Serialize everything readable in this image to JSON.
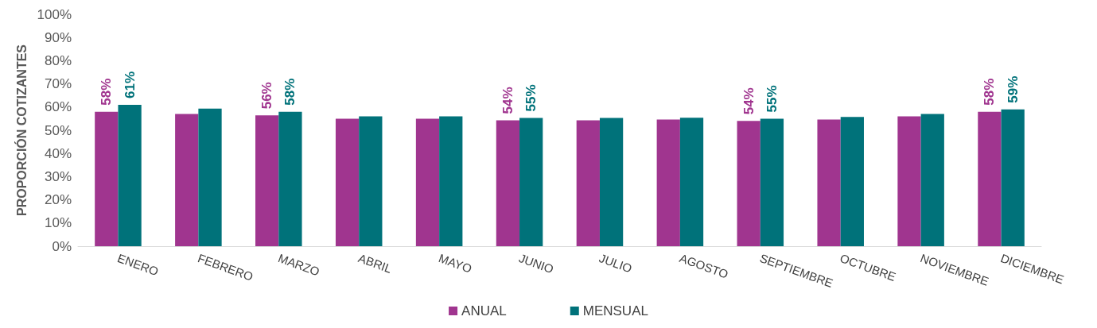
{
  "chart_data": {
    "type": "bar",
    "ylabel": "PROPORCIÓN COTIZANTES",
    "categories": [
      "ENERO",
      "FEBRERO",
      "MARZO",
      "ABRIL",
      "MAYO",
      "JUNIO",
      "JULIO",
      "AGOSTO",
      "SEPTIEMBRE",
      "OCTUBRE",
      "NOVIEMBRE",
      "DICIEMBRE"
    ],
    "series": [
      {
        "name": "ANUAL",
        "color": "#a0358f",
        "values": [
          58,
          57,
          56.4,
          55,
          55,
          54.3,
          54.3,
          54.6,
          54,
          54.6,
          56,
          58
        ],
        "value_labels": [
          "58%",
          null,
          "56%",
          null,
          null,
          "54%",
          null,
          null,
          "54%",
          null,
          null,
          "58%"
        ]
      },
      {
        "name": "MENSUAL",
        "color": "#00727a",
        "values": [
          61,
          59.3,
          58,
          56,
          56,
          55.3,
          55.3,
          55.4,
          55,
          55.7,
          57,
          59
        ],
        "value_labels": [
          "61%",
          null,
          "58%",
          null,
          null,
          "55%",
          null,
          null,
          "55%",
          null,
          null,
          "59%"
        ]
      }
    ],
    "ylim": [
      0,
      100
    ],
    "yticks": [
      {
        "value": 0,
        "label": "0%"
      },
      {
        "value": 10,
        "label": "10%"
      },
      {
        "value": 20,
        "label": "20%"
      },
      {
        "value": 30,
        "label": "30%"
      },
      {
        "value": 40,
        "label": "40%"
      },
      {
        "value": 50,
        "label": "50%"
      },
      {
        "value": 60,
        "label": "60%"
      },
      {
        "value": 70,
        "label": "70%"
      },
      {
        "value": 80,
        "label": "80%"
      },
      {
        "value": 90,
        "label": "90%"
      },
      {
        "value": 100,
        "label": "100%"
      }
    ],
    "grid": false,
    "legend": "bottom"
  }
}
